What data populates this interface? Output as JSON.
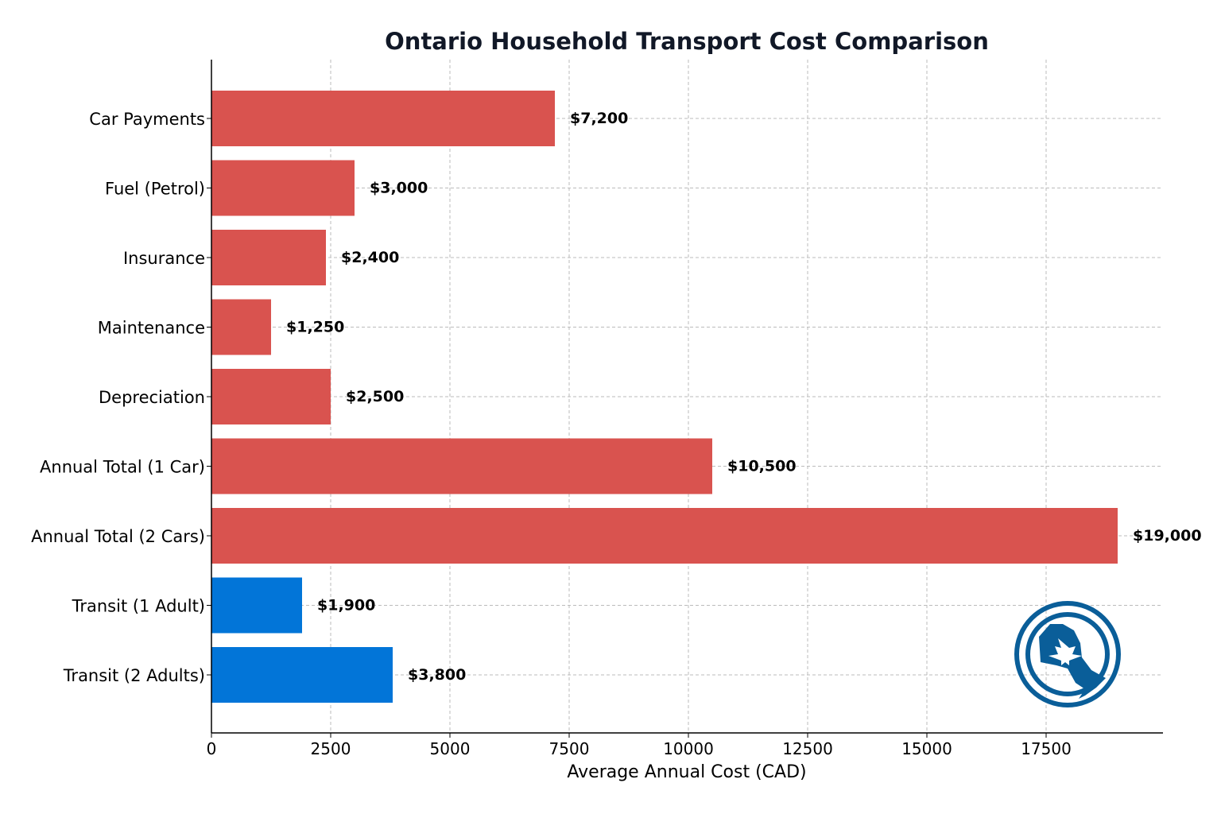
{
  "chart_data": {
    "type": "bar",
    "orientation": "horizontal",
    "title": "Ontario Household Transport Cost Comparison",
    "xlabel": "Average Annual Cost (CAD)",
    "ylabel": "",
    "xlim": [
      0,
      19950
    ],
    "xticks": [
      0,
      2500,
      5000,
      7500,
      10000,
      12500,
      15000,
      17500
    ],
    "grid": true,
    "categories": [
      "Car Payments",
      "Fuel (Petrol)",
      "Insurance",
      "Maintenance",
      "Depreciation",
      "Annual Total (1 Car)",
      "Annual Total (2 Cars)",
      "Transit (1 Adult)",
      "Transit (2 Adults)"
    ],
    "values": [
      7200,
      3000,
      2400,
      1250,
      2500,
      10500,
      19000,
      1900,
      3800
    ],
    "data_labels": [
      "$7,200",
      "$3,000",
      "$2,400",
      "$1,250",
      "$2,500",
      "$10,500",
      "$19,000",
      "$1,900",
      "$3,800"
    ],
    "bar_colors": [
      "#d9534f",
      "#d9534f",
      "#d9534f",
      "#d9534f",
      "#d9534f",
      "#d9534f",
      "#d9534f",
      "#0275d8",
      "#0275d8"
    ]
  },
  "logo": {
    "name": "ontario-maple-leaf-emblem",
    "color": "#0a5e99"
  }
}
